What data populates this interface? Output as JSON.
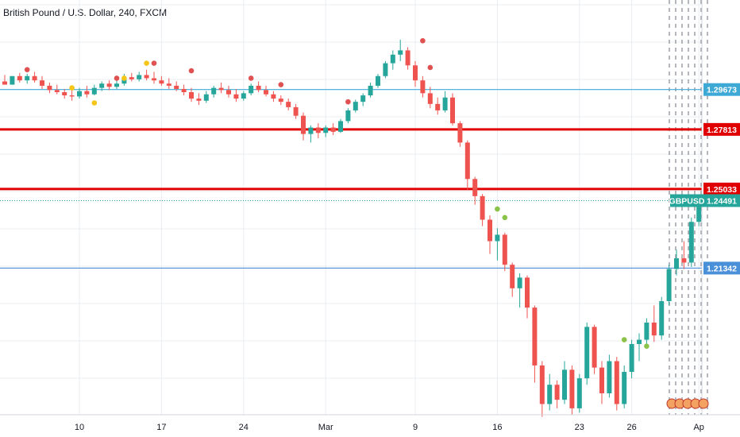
{
  "chart_title": "British Pound / U.S. Dollar, 240, FXCM",
  "colors": {
    "up": "#26a69a",
    "down": "#ef5350",
    "grid": "#e9ecf1",
    "resistance_red": "#e00000",
    "support_blue": "#4a90d9",
    "cyan_line": "#3fa9d6",
    "price_line": "#26a69a",
    "marker_red": "#e05252",
    "marker_yellow": "#f5c518",
    "marker_green": "#8bc34a"
  },
  "chart_data": {
    "type": "candlestick",
    "symbol": "GBPUSD",
    "ylim": [
      1.145,
      1.3385
    ],
    "x_ticks": [
      {
        "label": "10",
        "i": 10
      },
      {
        "label": "17",
        "i": 21
      },
      {
        "label": "24",
        "i": 32
      },
      {
        "label": "Mar",
        "i": 43
      },
      {
        "label": "9",
        "i": 55
      },
      {
        "label": "16",
        "i": 66
      },
      {
        "label": "23",
        "i": 77
      },
      {
        "label": "26",
        "i": 84
      },
      {
        "label": "Ap",
        "i": 93
      }
    ],
    "candles": [
      [
        1.3005,
        1.3035,
        1.2995,
        1.299
      ],
      [
        1.299,
        1.302,
        1.299,
        1.303
      ],
      [
        1.303,
        1.3045,
        1.3,
        1.301
      ],
      [
        1.301,
        1.304,
        1.2995,
        1.303
      ],
      [
        1.303,
        1.305,
        1.3,
        1.301
      ],
      [
        1.301,
        1.303,
        1.297,
        1.2985
      ],
      [
        1.2985,
        1.3,
        1.295,
        1.2965
      ],
      [
        1.2965,
        1.299,
        1.2945,
        1.2955
      ],
      [
        1.2955,
        1.297,
        1.2925,
        1.294
      ],
      [
        1.294,
        1.2965,
        1.2915,
        1.2935
      ],
      [
        1.2935,
        1.2975,
        1.2925,
        1.296
      ],
      [
        1.296,
        1.2985,
        1.293,
        1.2945
      ],
      [
        1.2945,
        1.299,
        1.294,
        1.2975
      ],
      [
        1.2975,
        1.3005,
        1.296,
        1.2995
      ],
      [
        1.2995,
        1.301,
        1.2965,
        1.298
      ],
      [
        1.298,
        1.301,
        1.297,
        1.2995
      ],
      [
        1.2995,
        1.304,
        1.2985,
        1.3025
      ],
      [
        1.3025,
        1.3045,
        1.3005,
        1.3015
      ],
      [
        1.3015,
        1.305,
        1.3005,
        1.3035
      ],
      [
        1.3035,
        1.306,
        1.301,
        1.302
      ],
      [
        1.302,
        1.305,
        1.2995,
        1.301
      ],
      [
        1.301,
        1.303,
        1.2985,
        1.2995
      ],
      [
        1.2995,
        1.302,
        1.297,
        1.2985
      ],
      [
        1.2985,
        1.3005,
        1.296,
        1.297
      ],
      [
        1.297,
        1.299,
        1.294,
        1.2955
      ],
      [
        1.2955,
        1.2975,
        1.291,
        1.2925
      ],
      [
        1.2925,
        1.295,
        1.2895,
        1.2915
      ],
      [
        1.2915,
        1.296,
        1.2905,
        1.2945
      ],
      [
        1.2945,
        1.2985,
        1.293,
        1.2975
      ],
      [
        1.2975,
        1.3,
        1.295,
        1.2965
      ],
      [
        1.2965,
        1.2985,
        1.293,
        1.2945
      ],
      [
        1.2945,
        1.297,
        1.291,
        1.2925
      ],
      [
        1.2925,
        1.296,
        1.2915,
        1.295
      ],
      [
        1.295,
        1.2995,
        1.294,
        1.2985
      ],
      [
        1.2985,
        1.3005,
        1.2955,
        1.2965
      ],
      [
        1.2965,
        1.2985,
        1.2935,
        1.2945
      ],
      [
        1.2945,
        1.296,
        1.291,
        1.2925
      ],
      [
        1.2925,
        1.294,
        1.2895,
        1.291
      ],
      [
        1.291,
        1.2925,
        1.287,
        1.2885
      ],
      [
        1.2885,
        1.29,
        1.283,
        1.2845
      ],
      [
        1.2845,
        1.286,
        1.273,
        1.276
      ],
      [
        1.276,
        1.28,
        1.272,
        1.279
      ],
      [
        1.279,
        1.281,
        1.274,
        1.2765
      ],
      [
        1.2765,
        1.28,
        1.2745,
        1.279
      ],
      [
        1.279,
        1.281,
        1.2755,
        1.277
      ],
      [
        1.277,
        1.283,
        1.2765,
        1.282
      ],
      [
        1.282,
        1.288,
        1.281,
        1.287
      ],
      [
        1.287,
        1.292,
        1.286,
        1.291
      ],
      [
        1.291,
        1.295,
        1.289,
        1.294
      ],
      [
        1.294,
        1.3,
        1.293,
        1.2985
      ],
      [
        1.2985,
        1.304,
        1.2975,
        1.303
      ],
      [
        1.303,
        1.31,
        1.302,
        1.309
      ],
      [
        1.309,
        1.315,
        1.306,
        1.313
      ],
      [
        1.313,
        1.32,
        1.31,
        1.315
      ],
      [
        1.315,
        1.3165,
        1.306,
        1.308
      ],
      [
        1.308,
        1.31,
        1.298,
        1.301
      ],
      [
        1.301,
        1.303,
        1.293,
        1.295
      ],
      [
        1.295,
        1.298,
        1.288,
        1.29
      ],
      [
        1.29,
        1.293,
        1.285,
        1.287
      ],
      [
        1.287,
        1.296,
        1.286,
        1.293
      ],
      [
        1.293,
        1.295,
        1.28,
        1.281
      ],
      [
        1.281,
        1.282,
        1.27,
        1.272
      ],
      [
        1.272,
        1.273,
        1.25,
        1.255
      ],
      [
        1.255,
        1.256,
        1.243,
        1.247
      ],
      [
        1.247,
        1.248,
        1.233,
        1.236
      ],
      [
        1.236,
        1.238,
        1.22,
        1.226
      ],
      [
        1.226,
        1.232,
        1.217,
        1.229
      ],
      [
        1.229,
        1.23,
        1.212,
        1.215
      ],
      [
        1.215,
        1.216,
        1.2,
        1.204
      ],
      [
        1.204,
        1.211,
        1.195,
        1.209
      ],
      [
        1.209,
        1.21,
        1.19,
        1.195
      ],
      [
        1.195,
        1.196,
        1.16,
        1.168
      ],
      [
        1.168,
        1.17,
        1.144,
        1.15
      ],
      [
        1.15,
        1.164,
        1.147,
        1.159
      ],
      [
        1.159,
        1.161,
        1.148,
        1.152
      ],
      [
        1.152,
        1.17,
        1.15,
        1.166
      ],
      [
        1.166,
        1.168,
        1.145,
        1.148
      ],
      [
        1.148,
        1.164,
        1.146,
        1.162
      ],
      [
        1.162,
        1.188,
        1.159,
        1.186
      ],
      [
        1.186,
        1.187,
        1.164,
        1.167
      ],
      [
        1.167,
        1.17,
        1.15,
        1.155
      ],
      [
        1.155,
        1.173,
        1.153,
        1.17
      ],
      [
        1.17,
        1.172,
        1.147,
        1.15
      ],
      [
        1.15,
        1.168,
        1.148,
        1.165
      ],
      [
        1.165,
        1.18,
        1.162,
        1.178
      ],
      [
        1.178,
        1.183,
        1.17,
        1.18
      ],
      [
        1.18,
        1.19,
        1.176,
        1.188
      ],
      [
        1.188,
        1.196,
        1.179,
        1.182
      ],
      [
        1.182,
        1.2,
        1.18,
        1.198
      ],
      [
        1.198,
        1.215,
        1.196,
        1.213
      ],
      [
        1.213,
        1.222,
        1.21,
        1.218
      ],
      [
        1.218,
        1.226,
        1.213,
        1.216
      ],
      [
        1.216,
        1.237,
        1.214,
        1.235
      ],
      [
        1.235,
        1.247,
        1.233,
        1.2449
      ]
    ],
    "markers": [
      {
        "i": 3,
        "price": 1.306,
        "color": "red"
      },
      {
        "i": 9,
        "price": 1.2975,
        "color": "yellow"
      },
      {
        "i": 12,
        "price": 1.2905,
        "color": "yellow"
      },
      {
        "i": 15,
        "price": 1.302,
        "color": "red"
      },
      {
        "i": 16,
        "price": 1.302,
        "color": "yellow"
      },
      {
        "i": 19,
        "price": 1.309,
        "color": "yellow"
      },
      {
        "i": 20,
        "price": 1.309,
        "color": "red"
      },
      {
        "i": 25,
        "price": 1.3055,
        "color": "red"
      },
      {
        "i": 33,
        "price": 1.302,
        "color": "red"
      },
      {
        "i": 37,
        "price": 1.299,
        "color": "red"
      },
      {
        "i": 46,
        "price": 1.291,
        "color": "red"
      },
      {
        "i": 56,
        "price": 1.3195,
        "color": "red"
      },
      {
        "i": 57,
        "price": 1.307,
        "color": "red"
      },
      {
        "i": 66,
        "price": 1.241,
        "color": "green"
      },
      {
        "i": 67,
        "price": 1.237,
        "color": "green"
      },
      {
        "i": 83,
        "price": 1.18,
        "color": "green"
      },
      {
        "i": 86,
        "price": 1.177,
        "color": "green"
      }
    ],
    "horizontal_levels": [
      {
        "price": 1.29673,
        "label": "1.29673",
        "style": "cyan"
      },
      {
        "price": 1.27813,
        "label": "1.27813",
        "style": "red"
      },
      {
        "price": 1.25033,
        "label": "1.25033",
        "style": "red"
      },
      {
        "price": 1.21342,
        "label": "1.21342",
        "style": "blue"
      }
    ],
    "current_price": {
      "price": 1.24491,
      "label": "1.24491",
      "symbol_label": "GBPUSD"
    },
    "future_lines_count": 7
  }
}
